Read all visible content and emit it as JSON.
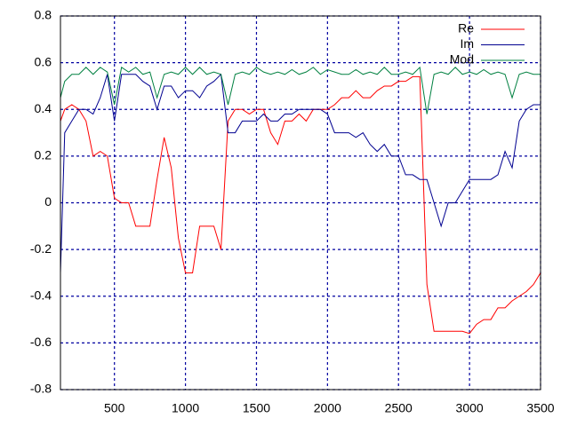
{
  "chart_data": {
    "type": "line",
    "x": [
      120,
      150,
      200,
      250,
      300,
      350,
      400,
      450,
      500,
      550,
      600,
      650,
      700,
      750,
      800,
      850,
      900,
      950,
      1000,
      1050,
      1100,
      1150,
      1200,
      1250,
      1300,
      1350,
      1400,
      1450,
      1500,
      1550,
      1600,
      1650,
      1700,
      1750,
      1800,
      1850,
      1900,
      1950,
      2000,
      2050,
      2100,
      2150,
      2200,
      2250,
      2300,
      2350,
      2400,
      2450,
      2500,
      2550,
      2600,
      2650,
      2700,
      2750,
      2800,
      2850,
      2900,
      2950,
      3000,
      3050,
      3100,
      3150,
      3200,
      3250,
      3300,
      3350,
      3400,
      3450,
      3500
    ],
    "series": [
      {
        "name": "Re",
        "color": "#ff0000",
        "values": [
          0.35,
          0.4,
          0.42,
          0.4,
          0.35,
          0.2,
          0.22,
          0.2,
          0.02,
          0,
          0,
          -0.1,
          -0.1,
          -0.1,
          0.1,
          0.28,
          0.15,
          -0.15,
          -0.3,
          -0.3,
          -0.1,
          -0.1,
          -0.1,
          -0.2,
          0.35,
          0.4,
          0.4,
          0.38,
          0.4,
          0.4,
          0.3,
          0.25,
          0.35,
          0.35,
          0.38,
          0.35,
          0.4,
          0.4,
          0.4,
          0.42,
          0.45,
          0.45,
          0.48,
          0.45,
          0.45,
          0.48,
          0.5,
          0.5,
          0.52,
          0.52,
          0.54,
          0.54,
          -0.35,
          -0.55,
          -0.55,
          -0.55,
          -0.55,
          -0.55,
          -0.56,
          -0.52,
          -0.5,
          -0.5,
          -0.45,
          -0.45,
          -0.42,
          -0.4,
          -0.38,
          -0.35,
          -0.3
        ]
      },
      {
        "name": "Im",
        "color": "#000090",
        "values": [
          -0.3,
          0.3,
          0.35,
          0.4,
          0.4,
          0.38,
          0.45,
          0.55,
          0.35,
          0.55,
          0.55,
          0.55,
          0.52,
          0.5,
          0.4,
          0.5,
          0.5,
          0.45,
          0.48,
          0.48,
          0.45,
          0.5,
          0.52,
          0.55,
          0.3,
          0.3,
          0.35,
          0.35,
          0.35,
          0.38,
          0.35,
          0.35,
          0.38,
          0.38,
          0.4,
          0.4,
          0.4,
          0.4,
          0.38,
          0.3,
          0.3,
          0.3,
          0.28,
          0.3,
          0.25,
          0.22,
          0.25,
          0.2,
          0.2,
          0.12,
          0.12,
          0.1,
          0.1,
          0,
          -0.1,
          0,
          0,
          0.05,
          0.1,
          0.1,
          0.1,
          0.1,
          0.12,
          0.22,
          0.15,
          0.35,
          0.4,
          0.42,
          0.42
        ]
      },
      {
        "name": "Mod",
        "color": "#008040",
        "values": [
          0.45,
          0.52,
          0.55,
          0.55,
          0.58,
          0.55,
          0.58,
          0.56,
          0.42,
          0.58,
          0.56,
          0.58,
          0.55,
          0.56,
          0.45,
          0.55,
          0.56,
          0.55,
          0.58,
          0.55,
          0.58,
          0.55,
          0.56,
          0.55,
          0.42,
          0.55,
          0.56,
          0.55,
          0.58,
          0.56,
          0.55,
          0.56,
          0.55,
          0.57,
          0.55,
          0.56,
          0.58,
          0.55,
          0.57,
          0.56,
          0.55,
          0.55,
          0.57,
          0.55,
          0.56,
          0.55,
          0.58,
          0.55,
          0.55,
          0.56,
          0.55,
          0.58,
          0.38,
          0.55,
          0.56,
          0.55,
          0.58,
          0.55,
          0.56,
          0.55,
          0.57,
          0.55,
          0.56,
          0.55,
          0.45,
          0.55,
          0.56,
          0.55,
          0.55
        ]
      }
    ],
    "xlim": [
      120,
      3500
    ],
    "xticks": [
      500,
      1000,
      1500,
      2000,
      2500,
      3000,
      3500
    ],
    "ylim": [
      -0.8,
      0.8
    ],
    "yticks": [
      -0.8,
      -0.6,
      -0.4,
      -0.2,
      0,
      0.2,
      0.4,
      0.6,
      0.8
    ],
    "grid": true,
    "legend": "top-right"
  }
}
